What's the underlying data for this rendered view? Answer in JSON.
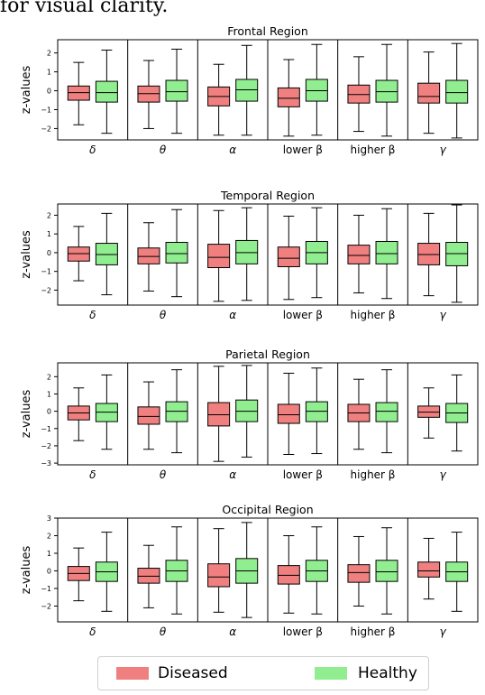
{
  "caption_text": "for visual clarity.",
  "colors": {
    "diseased": "#f08080",
    "healthy": "#90ee90"
  },
  "legend": {
    "diseased_label": "Diseased",
    "healthy_label": "Healthy"
  },
  "chart_data": [
    {
      "type": "box",
      "title": "Frontal Region",
      "ylabel": "z-values",
      "ylim": [
        -2.6,
        2.7
      ],
      "yticks": [
        -2,
        -1,
        0,
        1,
        2
      ],
      "categories": [
        "δ",
        "θ",
        "α",
        "lower β",
        "higher β",
        "γ"
      ],
      "series": [
        {
          "name": "Diseased",
          "boxes": [
            {
              "lo": -1.8,
              "q1": -0.5,
              "median": -0.1,
              "q3": 0.25,
              "hi": 1.5
            },
            {
              "lo": -2.0,
              "q1": -0.6,
              "median": -0.15,
              "q3": 0.25,
              "hi": 1.6
            },
            {
              "lo": -2.35,
              "q1": -0.8,
              "median": -0.3,
              "q3": 0.2,
              "hi": 1.4
            },
            {
              "lo": -2.4,
              "q1": -0.85,
              "median": -0.4,
              "q3": 0.15,
              "hi": 1.65
            },
            {
              "lo": -2.15,
              "q1": -0.65,
              "median": -0.2,
              "q3": 0.3,
              "hi": 1.8
            },
            {
              "lo": -2.25,
              "q1": -0.65,
              "median": -0.3,
              "q3": 0.4,
              "hi": 2.05
            }
          ]
        },
        {
          "name": "Healthy",
          "boxes": [
            {
              "lo": -2.25,
              "q1": -0.6,
              "median": -0.1,
              "q3": 0.5,
              "hi": 2.15
            },
            {
              "lo": -2.25,
              "q1": -0.55,
              "median": -0.05,
              "q3": 0.55,
              "hi": 2.2
            },
            {
              "lo": -2.35,
              "q1": -0.55,
              "median": 0.05,
              "q3": 0.6,
              "hi": 2.4
            },
            {
              "lo": -2.35,
              "q1": -0.55,
              "median": 0.0,
              "q3": 0.6,
              "hi": 2.45
            },
            {
              "lo": -2.4,
              "q1": -0.6,
              "median": -0.05,
              "q3": 0.55,
              "hi": 2.45
            },
            {
              "lo": -2.5,
              "q1": -0.65,
              "median": -0.1,
              "q3": 0.55,
              "hi": 2.5
            }
          ]
        }
      ]
    },
    {
      "type": "box",
      "title": "Temporal Region",
      "ylabel": "z-values",
      "ylim": [
        -2.8,
        2.6
      ],
      "yticks": [
        -2,
        -1,
        0,
        1,
        2
      ],
      "categories": [
        "δ",
        "θ",
        "α",
        "lower β",
        "higher β",
        "γ"
      ],
      "series": [
        {
          "name": "Diseased",
          "boxes": [
            {
              "lo": -1.5,
              "q1": -0.45,
              "median": -0.05,
              "q3": 0.3,
              "hi": 1.4
            },
            {
              "lo": -2.05,
              "q1": -0.6,
              "median": -0.2,
              "q3": 0.25,
              "hi": 1.6
            },
            {
              "lo": -2.6,
              "q1": -0.8,
              "median": -0.25,
              "q3": 0.45,
              "hi": 2.25
            },
            {
              "lo": -2.5,
              "q1": -0.75,
              "median": -0.3,
              "q3": 0.3,
              "hi": 1.95
            },
            {
              "lo": -2.15,
              "q1": -0.6,
              "median": -0.15,
              "q3": 0.4,
              "hi": 2.0
            },
            {
              "lo": -2.3,
              "q1": -0.65,
              "median": -0.1,
              "q3": 0.5,
              "hi": 2.1
            }
          ]
        },
        {
          "name": "Healthy",
          "boxes": [
            {
              "lo": -2.25,
              "q1": -0.65,
              "median": -0.1,
              "q3": 0.5,
              "hi": 2.1
            },
            {
              "lo": -2.35,
              "q1": -0.55,
              "median": -0.05,
              "q3": 0.55,
              "hi": 2.3
            },
            {
              "lo": -2.55,
              "q1": -0.6,
              "median": 0.0,
              "q3": 0.65,
              "hi": 2.4
            },
            {
              "lo": -2.4,
              "q1": -0.6,
              "median": 0.0,
              "q3": 0.6,
              "hi": 2.4
            },
            {
              "lo": -2.45,
              "q1": -0.6,
              "median": -0.05,
              "q3": 0.6,
              "hi": 2.35
            },
            {
              "lo": -2.65,
              "q1": -0.7,
              "median": -0.05,
              "q3": 0.55,
              "hi": 2.55
            }
          ]
        }
      ]
    },
    {
      "type": "box",
      "title": "Parietal Region",
      "ylabel": "z-values",
      "ylim": [
        -3.1,
        2.8
      ],
      "yticks": [
        -3,
        -2,
        -1,
        0,
        1,
        2
      ],
      "categories": [
        "δ",
        "θ",
        "α",
        "lower β",
        "higher β",
        "γ"
      ],
      "series": [
        {
          "name": "Diseased",
          "boxes": [
            {
              "lo": -1.7,
              "q1": -0.5,
              "median": -0.1,
              "q3": 0.3,
              "hi": 1.35
            },
            {
              "lo": -2.2,
              "q1": -0.75,
              "median": -0.3,
              "q3": 0.25,
              "hi": 1.7
            },
            {
              "lo": -2.9,
              "q1": -0.85,
              "median": -0.2,
              "q3": 0.5,
              "hi": 2.6
            },
            {
              "lo": -2.5,
              "q1": -0.7,
              "median": -0.2,
              "q3": 0.4,
              "hi": 2.2
            },
            {
              "lo": -2.2,
              "q1": -0.6,
              "median": -0.1,
              "q3": 0.4,
              "hi": 1.85
            },
            {
              "lo": -1.55,
              "q1": -0.35,
              "median": -0.05,
              "q3": 0.3,
              "hi": 1.35
            }
          ]
        },
        {
          "name": "Healthy",
          "boxes": [
            {
              "lo": -2.2,
              "q1": -0.6,
              "median": -0.05,
              "q3": 0.45,
              "hi": 2.1
            },
            {
              "lo": -2.4,
              "q1": -0.6,
              "median": 0.0,
              "q3": 0.55,
              "hi": 2.4
            },
            {
              "lo": -2.65,
              "q1": -0.6,
              "median": 0.0,
              "q3": 0.65,
              "hi": 2.65
            },
            {
              "lo": -2.45,
              "q1": -0.6,
              "median": 0.0,
              "q3": 0.55,
              "hi": 2.5
            },
            {
              "lo": -2.4,
              "q1": -0.6,
              "median": 0.0,
              "q3": 0.5,
              "hi": 2.4
            },
            {
              "lo": -2.3,
              "q1": -0.65,
              "median": -0.1,
              "q3": 0.45,
              "hi": 2.1
            }
          ]
        }
      ]
    },
    {
      "type": "box",
      "title": "Occipital Region",
      "ylabel": "z-values",
      "ylim": [
        -2.9,
        3.0
      ],
      "yticks": [
        -2,
        -1,
        0,
        1,
        2,
        3
      ],
      "categories": [
        "δ",
        "θ",
        "α",
        "lower β",
        "higher β",
        "γ"
      ],
      "series": [
        {
          "name": "Diseased",
          "boxes": [
            {
              "lo": -1.7,
              "q1": -0.55,
              "median": -0.15,
              "q3": 0.25,
              "hi": 1.3
            },
            {
              "lo": -2.1,
              "q1": -0.7,
              "median": -0.3,
              "q3": 0.15,
              "hi": 1.45
            },
            {
              "lo": -2.35,
              "q1": -0.9,
              "median": -0.35,
              "q3": 0.4,
              "hi": 2.4
            },
            {
              "lo": -2.4,
              "q1": -0.75,
              "median": -0.25,
              "q3": 0.3,
              "hi": 2.0
            },
            {
              "lo": -2.0,
              "q1": -0.65,
              "median": -0.1,
              "q3": 0.35,
              "hi": 1.95
            },
            {
              "lo": -1.6,
              "q1": -0.35,
              "median": 0.0,
              "q3": 0.5,
              "hi": 1.85
            }
          ]
        },
        {
          "name": "Healthy",
          "boxes": [
            {
              "lo": -2.3,
              "q1": -0.6,
              "median": -0.05,
              "q3": 0.5,
              "hi": 2.2
            },
            {
              "lo": -2.45,
              "q1": -0.6,
              "median": 0.0,
              "q3": 0.6,
              "hi": 2.5
            },
            {
              "lo": -2.65,
              "q1": -0.7,
              "median": 0.0,
              "q3": 0.7,
              "hi": 2.75
            },
            {
              "lo": -2.45,
              "q1": -0.6,
              "median": 0.0,
              "q3": 0.6,
              "hi": 2.5
            },
            {
              "lo": -2.45,
              "q1": -0.6,
              "median": -0.05,
              "q3": 0.6,
              "hi": 2.45
            },
            {
              "lo": -2.3,
              "q1": -0.6,
              "median": -0.05,
              "q3": 0.5,
              "hi": 2.2
            }
          ]
        }
      ]
    }
  ]
}
